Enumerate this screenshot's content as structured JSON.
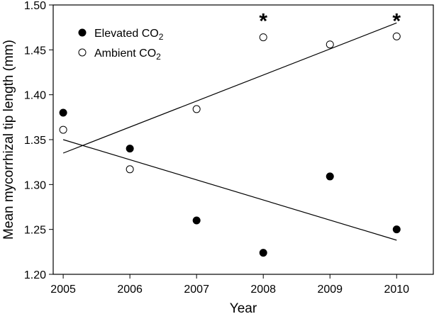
{
  "chart_data": {
    "type": "scatter",
    "xlabel": "Year",
    "ylabel": "Mean mycorrhizal tip length (mm)",
    "xlim": [
      2004.85,
      2010.55
    ],
    "ylim": [
      1.2,
      1.5
    ],
    "xticks": [
      2005,
      2006,
      2007,
      2008,
      2009,
      2010
    ],
    "yticks": [
      1.2,
      1.25,
      1.3,
      1.35,
      1.4,
      1.45,
      1.5
    ],
    "ytick_labels": [
      "1.20",
      "1.25",
      "1.30",
      "1.35",
      "1.40",
      "1.45",
      "1.50"
    ],
    "grid": false,
    "legend_position": "top-left",
    "series": [
      {
        "name": "Elevated CO",
        "name_subscript": "2",
        "marker": "filled-circle",
        "color": "#000000",
        "x": [
          2005,
          2006,
          2007,
          2008,
          2009,
          2010
        ],
        "y": [
          1.38,
          1.34,
          1.26,
          1.224,
          1.309,
          1.25
        ],
        "trend_line": {
          "x": [
            2005,
            2010
          ],
          "y": [
            1.35,
            1.238
          ]
        }
      },
      {
        "name": "Ambient CO",
        "name_subscript": "2",
        "marker": "open-circle",
        "color": "#000000",
        "x": [
          2005,
          2006,
          2007,
          2008,
          2009,
          2010
        ],
        "y": [
          1.361,
          1.317,
          1.384,
          1.464,
          1.456,
          1.465
        ],
        "trend_line": {
          "x": [
            2005,
            2010
          ],
          "y": [
            1.335,
            1.48
          ]
        }
      }
    ],
    "annotations": [
      {
        "text": "*",
        "x": 2008,
        "y": 1.487
      },
      {
        "text": "*",
        "x": 2010,
        "y": 1.487
      }
    ]
  }
}
